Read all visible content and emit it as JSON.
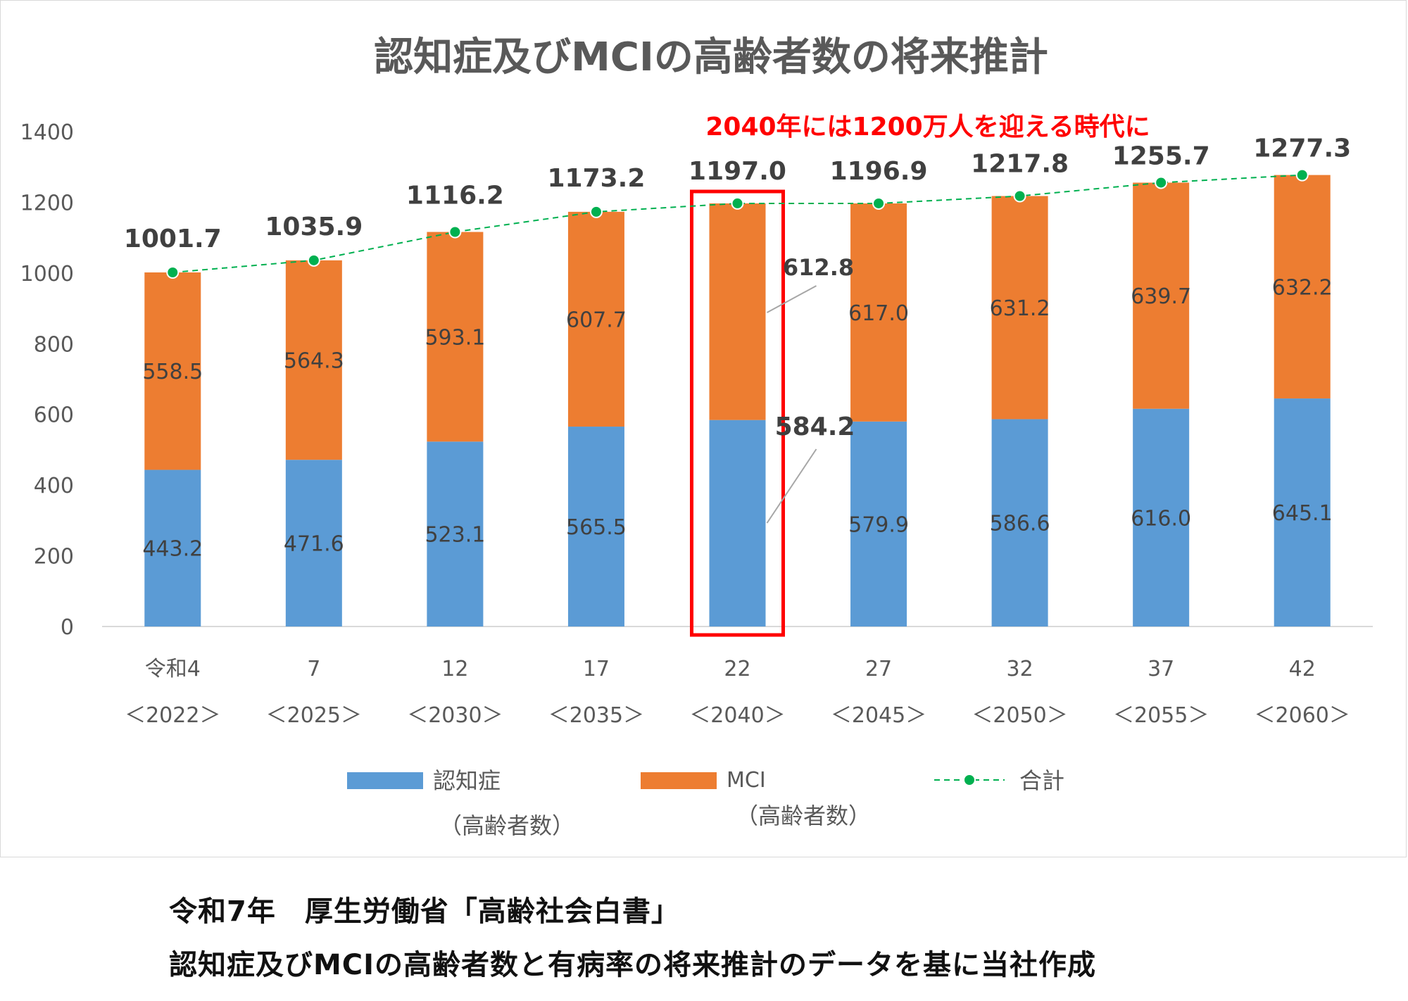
{
  "chart_data": {
    "type": "bar",
    "stacked": true,
    "title": "認知症及びMCIの高齢者数の将来推計",
    "annotation": "2040年には1200万人を迎える時代に",
    "highlighted_category_index": 4,
    "highlight_color": "#ff0000",
    "categories": [
      {
        "line1": "令和4",
        "line2": "＜2022＞"
      },
      {
        "line1": "7",
        "line2": "＜2025＞"
      },
      {
        "line1": "12",
        "line2": "＜2030＞"
      },
      {
        "line1": "17",
        "line2": "＜2035＞"
      },
      {
        "line1": "22",
        "line2": "＜2040＞"
      },
      {
        "line1": "27",
        "line2": "＜2045＞"
      },
      {
        "line1": "32",
        "line2": "＜2050＞"
      },
      {
        "line1": "37",
        "line2": "＜2055＞"
      },
      {
        "line1": "42",
        "line2": "＜2060＞"
      }
    ],
    "series": [
      {
        "name": "認知症",
        "name_sub": "（高齢者数）",
        "color": "#5b9bd5",
        "values": [
          443.2,
          471.6,
          523.1,
          565.5,
          584.2,
          579.9,
          586.6,
          616.0,
          645.1
        ],
        "labels": [
          "443.2",
          "471.6",
          "523.1",
          "565.5",
          "584.2",
          "579.9",
          "586.6",
          "616.0",
          "645.1"
        ]
      },
      {
        "name": "MCI",
        "name_sub": "（高齢者数）",
        "color": "#ed7d31",
        "values": [
          558.5,
          564.3,
          593.1,
          607.7,
          612.8,
          617.0,
          631.2,
          639.7,
          632.2
        ],
        "labels": [
          "558.5",
          "564.3",
          "593.1",
          "607.7",
          "612.8",
          "617.0",
          "631.2",
          "639.7",
          "632.2"
        ]
      }
    ],
    "total": {
      "name": "合計",
      "color": "#00b050",
      "line_style": "dashed",
      "values": [
        1001.7,
        1035.9,
        1116.2,
        1173.2,
        1197.0,
        1196.9,
        1217.8,
        1255.7,
        1277.3
      ],
      "labels": [
        "1001.7",
        "1035.9",
        "1116.2",
        "1173.2",
        "1197.0",
        "1196.9",
        "1217.8",
        "1255.7",
        "1277.3"
      ]
    },
    "ylim": [
      0,
      1400
    ],
    "yticks": [
      "0",
      "200",
      "400",
      "600",
      "800",
      "1000",
      "1200",
      "1400"
    ],
    "grid": false,
    "legend_position": "bottom"
  },
  "source": {
    "line1": "令和7年　厚生労働省「高齢社会白書」",
    "line2": "認知症及びMCIの高齢者数と有病率の将来推計のデータを基に当社作成"
  }
}
